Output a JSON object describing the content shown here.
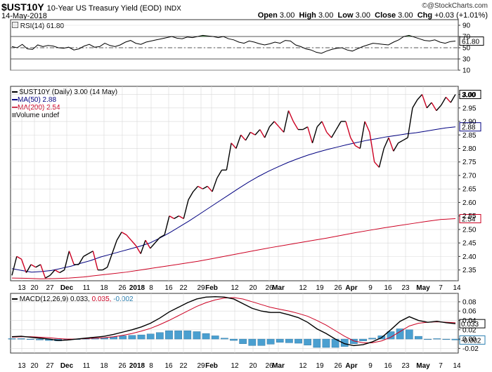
{
  "header": {
    "symbol": "$UST10Y",
    "title": "10-Year US Treasury Yield (EOD)",
    "exchange": "INDX",
    "date": "14-May-2018",
    "watermark": "@StockCharts.com",
    "quote": {
      "open_label": "Open",
      "open": "3.00",
      "high_label": "High",
      "high": "3.00",
      "low_label": "Low",
      "low": "3.00",
      "close_label": "Close",
      "close": "3.00",
      "chg_label": "Chg",
      "chg": "+0.03 (+1.01%)"
    }
  },
  "colors": {
    "price": "#000000",
    "ma50": "#000080",
    "ma200": "#cc0022",
    "down_price": "#cc0022",
    "histogram": "#4a9fd0",
    "rsi_fill": "#4a8a4a",
    "macd_signal": "#cc0022",
    "grid": "#d8d8d8"
  },
  "chart_data": [
    {
      "type": "line",
      "title": "RSI(14) 61.80",
      "legend": [
        "RSI(14) 61.80"
      ],
      "ylim": [
        10,
        100
      ],
      "yticks": [
        10,
        30,
        50,
        70,
        90
      ],
      "current_label": "61.80",
      "reference_lines": [
        30,
        50,
        70
      ],
      "values": [
        52,
        50,
        56,
        48,
        47,
        55,
        52,
        54,
        53,
        50,
        49,
        51,
        46,
        48,
        53,
        56,
        51,
        52,
        58,
        54,
        52,
        55,
        60,
        63,
        58,
        56,
        60,
        62,
        64,
        66,
        68,
        70,
        67,
        66,
        69,
        68,
        70,
        72,
        71,
        70,
        68,
        70,
        66,
        64,
        60,
        58,
        62,
        60,
        57,
        55,
        57,
        60,
        58,
        63,
        62,
        55,
        52,
        48,
        46,
        42,
        40,
        44,
        47,
        49,
        50,
        46,
        44,
        48,
        52,
        55,
        58,
        57,
        56,
        55,
        60,
        64,
        70,
        72,
        69,
        66,
        63,
        62,
        64,
        60,
        58,
        61,
        61.8
      ]
    },
    {
      "type": "line",
      "title": "$UST10Y (Daily) 3.00 (14 May)",
      "legend": [
        "$UST10Y (Daily) 3.00 (14 May)",
        "MA(50) 2.88",
        "MA(200) 2.54",
        "Volume undef"
      ],
      "ylim": [
        2.31,
        3.03
      ],
      "yticks": [
        2.35,
        2.4,
        2.45,
        2.5,
        2.55,
        2.6,
        2.65,
        2.7,
        2.75,
        2.8,
        2.85,
        2.9,
        2.95,
        3.0
      ],
      "xticks": [
        "13",
        "20",
        "27",
        "Dec",
        "11",
        "18",
        "26",
        "2018",
        "8",
        "16",
        "22",
        "29",
        "Feb",
        "12",
        "20",
        "26",
        "Mar",
        "12",
        "19",
        "26",
        "Apr",
        "9",
        "16",
        "23",
        "May",
        "7",
        "14"
      ],
      "bold_xticks": [
        "Dec",
        "2018",
        "Feb",
        "Mar",
        "Apr",
        "May"
      ],
      "current_labels": {
        "price": "3.00",
        "ma50": "2.88",
        "ma200": "2.54"
      },
      "series": [
        {
          "name": "$UST10Y",
          "values": [
            2.33,
            2.4,
            2.39,
            2.34,
            2.37,
            2.36,
            2.37,
            2.32,
            2.33,
            2.35,
            2.34,
            2.35,
            2.42,
            2.37,
            2.37,
            2.4,
            2.41,
            2.42,
            2.35,
            2.35,
            2.36,
            2.41,
            2.46,
            2.49,
            2.48,
            2.46,
            2.44,
            2.41,
            2.46,
            2.43,
            2.45,
            2.47,
            2.48,
            2.55,
            2.54,
            2.55,
            2.54,
            2.61,
            2.64,
            2.66,
            2.65,
            2.66,
            2.64,
            2.69,
            2.72,
            2.72,
            2.82,
            2.8,
            2.85,
            2.83,
            2.86,
            2.85,
            2.87,
            2.84,
            2.88,
            2.9,
            2.88,
            2.86,
            2.94,
            2.9,
            2.87,
            2.87,
            2.88,
            2.82,
            2.88,
            2.9,
            2.86,
            2.84,
            2.87,
            2.9,
            2.9,
            2.84,
            2.81,
            2.8,
            2.9,
            2.86,
            2.75,
            2.73,
            2.8,
            2.84,
            2.79,
            2.82,
            2.83,
            2.84,
            2.95,
            2.98,
            3.0,
            2.95,
            2.97,
            2.94,
            2.96,
            2.99,
            2.97,
            3.0
          ]
        },
        {
          "name": "MA(50)",
          "values": [
            2.355,
            2.348,
            2.342,
            2.344,
            2.348,
            2.356,
            2.364,
            2.375,
            2.385,
            2.398,
            2.408,
            2.418,
            2.428,
            2.438,
            2.45,
            2.468,
            2.488,
            2.51,
            2.532,
            2.556,
            2.58,
            2.604,
            2.628,
            2.652,
            2.675,
            2.696,
            2.715,
            2.732,
            2.748,
            2.762,
            2.775,
            2.786,
            2.796,
            2.805,
            2.814,
            2.822,
            2.83,
            2.836,
            2.843,
            2.848,
            2.854,
            2.858,
            2.864,
            2.87,
            2.876,
            2.88
          ]
        },
        {
          "name": "MA(200)",
          "values": [
            2.32,
            2.319,
            2.317,
            2.318,
            2.32,
            2.324,
            2.33,
            2.336,
            2.342,
            2.35,
            2.358,
            2.366,
            2.374,
            2.382,
            2.392,
            2.402,
            2.412,
            2.422,
            2.432,
            2.441,
            2.45,
            2.459,
            2.468,
            2.478,
            2.488,
            2.497,
            2.506,
            2.514,
            2.522,
            2.53,
            2.537,
            2.54
          ]
        }
      ]
    },
    {
      "type": "bar",
      "title": "MACD(12,26,9) 0.033, 0.035, -0.002",
      "legend": [
        "MACD(12,26,9) 0.033,",
        "0.035,",
        "-0.002"
      ],
      "ylim": [
        -0.03,
        0.098
      ],
      "yticks": [
        -0.02,
        0.0,
        0.02,
        0.04,
        0.06,
        0.08
      ],
      "xticks": [
        "13",
        "20",
        "27",
        "Dec",
        "11",
        "18",
        "26",
        "2018",
        "8",
        "16",
        "22",
        "29",
        "Feb",
        "12",
        "20",
        "26",
        "Mar",
        "12",
        "19",
        "26",
        "Apr",
        "9",
        "16",
        "23",
        "May",
        "7",
        "14"
      ],
      "current_labels": {
        "macd": "0.033",
        "histogram": "-0.002"
      },
      "series": [
        {
          "name": "MACD",
          "values": [
            0.005,
            0.006,
            0.004,
            0.002,
            0.0,
            -0.003,
            -0.002,
            0.0,
            0.002,
            0.004,
            0.006,
            0.01,
            0.015,
            0.02,
            0.026,
            0.034,
            0.045,
            0.058,
            0.068,
            0.078,
            0.086,
            0.09,
            0.091,
            0.09,
            0.086,
            0.076,
            0.066,
            0.06,
            0.057,
            0.057,
            0.052,
            0.046,
            0.036,
            0.022,
            0.012,
            0.0,
            -0.01,
            -0.014,
            -0.012,
            -0.006,
            0.003,
            0.02,
            0.038,
            0.048,
            0.04,
            0.036,
            0.038,
            0.035,
            0.033
          ]
        },
        {
          "name": "Signal",
          "values": [
            0.004,
            0.005,
            0.005,
            0.004,
            0.003,
            0.001,
            0.0,
            0.0,
            0.001,
            0.002,
            0.003,
            0.005,
            0.008,
            0.012,
            0.017,
            0.023,
            0.031,
            0.04,
            0.05,
            0.06,
            0.07,
            0.078,
            0.084,
            0.088,
            0.089,
            0.086,
            0.08,
            0.074,
            0.068,
            0.064,
            0.06,
            0.055,
            0.049,
            0.04,
            0.03,
            0.018,
            0.006,
            -0.004,
            -0.008,
            -0.008,
            -0.004,
            0.004,
            0.016,
            0.028,
            0.034,
            0.036,
            0.037,
            0.036,
            0.035
          ]
        },
        {
          "name": "Histogram",
          "values": [
            0.001,
            0.001,
            -0.001,
            -0.002,
            -0.003,
            -0.004,
            -0.002,
            0.0,
            0.001,
            0.002,
            0.003,
            0.005,
            0.007,
            0.008,
            0.009,
            0.011,
            0.014,
            0.018,
            0.018,
            0.018,
            0.016,
            0.012,
            0.007,
            0.002,
            -0.003,
            -0.01,
            -0.014,
            -0.014,
            -0.011,
            -0.007,
            -0.008,
            -0.009,
            -0.013,
            -0.018,
            -0.018,
            -0.018,
            -0.016,
            -0.01,
            -0.004,
            0.002,
            0.007,
            0.016,
            0.022,
            0.02,
            0.006,
            0.0,
            0.001,
            -0.001,
            -0.002
          ]
        }
      ]
    }
  ]
}
